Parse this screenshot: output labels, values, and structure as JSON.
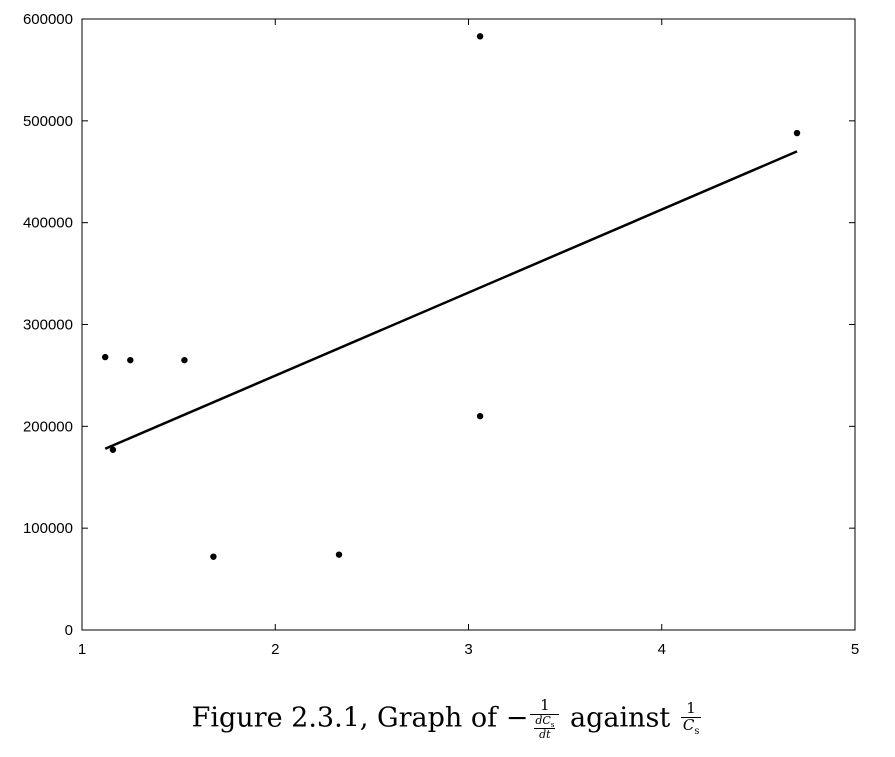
{
  "chart_data": {
    "type": "scatter",
    "xlim": [
      1,
      5
    ],
    "ylim": [
      0,
      600000
    ],
    "x_ticks": [
      1,
      2,
      3,
      4,
      5
    ],
    "y_ticks": [
      0,
      100000,
      200000,
      300000,
      400000,
      500000,
      600000
    ],
    "x_tick_labels": [
      "1",
      "2",
      "3",
      "4",
      "5"
    ],
    "y_tick_labels": [
      "0",
      "100000",
      "200000",
      "300000",
      "400000",
      "500000",
      "600000"
    ],
    "grid": false,
    "points": [
      {
        "x": 1.12,
        "y": 268000
      },
      {
        "x": 1.16,
        "y": 177000
      },
      {
        "x": 1.25,
        "y": 265000
      },
      {
        "x": 1.53,
        "y": 265000
      },
      {
        "x": 1.68,
        "y": 72000
      },
      {
        "x": 2.33,
        "y": 74000
      },
      {
        "x": 3.06,
        "y": 583000
      },
      {
        "x": 3.06,
        "y": 210000
      },
      {
        "x": 4.7,
        "y": 488000
      }
    ],
    "fit_line": {
      "x": [
        1.12,
        4.7
      ],
      "y": [
        178000,
        470000
      ]
    }
  },
  "caption": {
    "prefix": "Figure 2.3.1, Graph of −",
    "frac1_num": "1",
    "frac1_inner_num_italic": "dC",
    "frac1_inner_num_sub": "s",
    "frac1_inner_den": "dt",
    "middle": " against ",
    "frac2_num": "1",
    "frac2_den_italic": "C",
    "frac2_den_sub": "s"
  }
}
